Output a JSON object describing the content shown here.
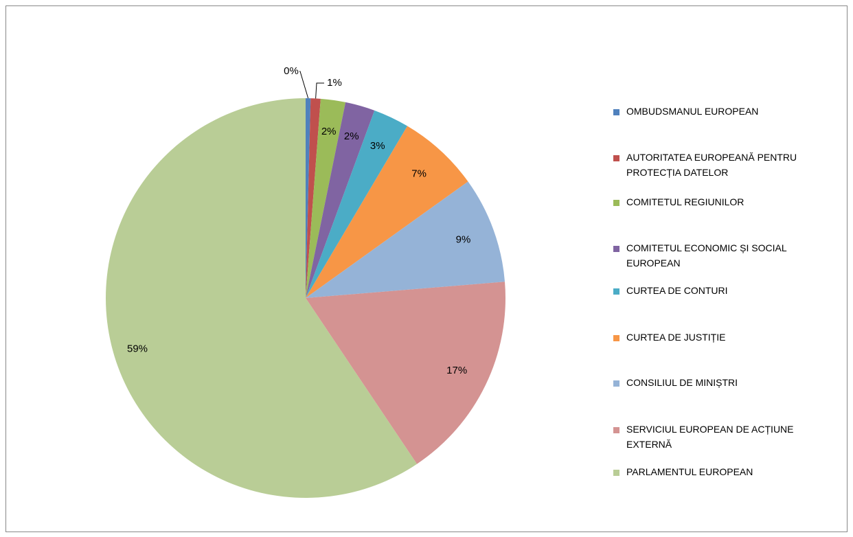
{
  "chart_data": {
    "type": "pie",
    "categories": [
      "OMBUDSMANUL EUROPEAN",
      "AUTORITATEA EUROPEANĂ PENTRU PROTECȚIA DATELOR",
      "COMITETUL REGIUNILOR",
      "COMITETUL ECONOMIC ȘI SOCIAL EUROPEAN",
      "CURTEA DE CONTURI",
      "CURTEA DE JUSTIȚIE",
      "CONSILIUL DE MINIȘTRI",
      "SERVICIUL EUROPEAN DE ACȚIUNE EXTERNĂ",
      "PARLAMENTUL EUROPEAN"
    ],
    "values": [
      0.4,
      0.8,
      2,
      2.4,
      2.9,
      6.6,
      8.6,
      16.9,
      59.4
    ],
    "value_labels": [
      "0%",
      "1%",
      "2%",
      "2%",
      "3%",
      "7%",
      "9%",
      "17%",
      "59%"
    ],
    "colors": [
      "#4f81bd",
      "#c0504d",
      "#9bbb59",
      "#8064a2",
      "#4bacc6",
      "#f79646",
      "#95b3d7",
      "#d49392",
      "#b9cd96"
    ],
    "legend": "right"
  }
}
